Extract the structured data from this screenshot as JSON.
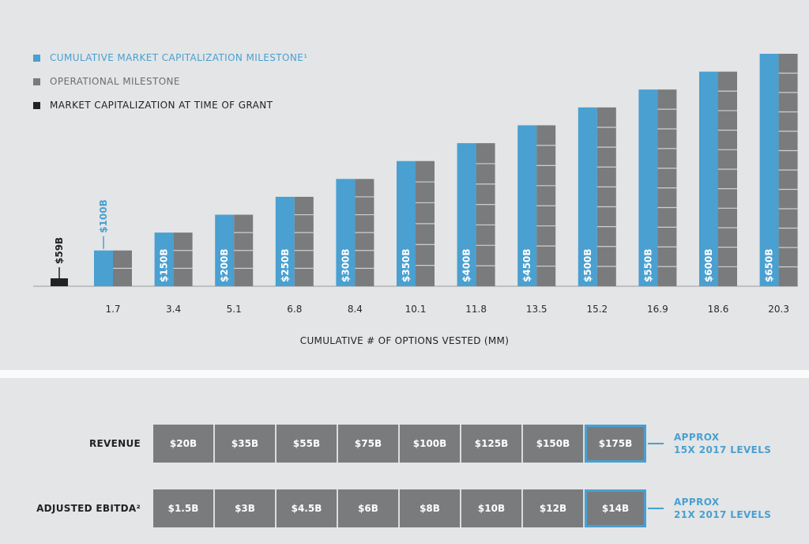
{
  "legend": [
    {
      "label": "CUMULATIVE MARKET CAPITALIZATION MILESTONE¹",
      "color": "#49a0d1",
      "text_color": "#49a0d1"
    },
    {
      "label": "OPERATIONAL MILESTONE",
      "color": "#7a7b7d",
      "text_color": "#6c6d6f"
    },
    {
      "label": "MARKET CAPITALIZATION AT TIME OF GRANT",
      "color": "#222222",
      "text_color": "#222222"
    }
  ],
  "chart_data": {
    "type": "bar",
    "title": "",
    "xlabel": "CUMULATIVE # OF OPTIONS VESTED (MM)",
    "ylabel": "",
    "grant": {
      "label": "$59B",
      "value": 59
    },
    "first_label": "$100B",
    "categories": [
      "1.7",
      "3.4",
      "5.1",
      "6.8",
      "8.4",
      "10.1",
      "11.8",
      "13.5",
      "15.2",
      "16.9",
      "18.6",
      "20.3"
    ],
    "series": [
      {
        "name": "Cumulative Market Capitalization Milestone",
        "values": [
          100,
          150,
          200,
          250,
          300,
          350,
          400,
          450,
          500,
          550,
          600,
          650
        ],
        "labels": [
          "$100B",
          "$150B",
          "$200B",
          "$250B",
          "$300B",
          "$350B",
          "$400B",
          "$450B",
          "$500B",
          "$550B",
          "$600B",
          "$650B"
        ]
      },
      {
        "name": "Operational Milestone",
        "values": [
          1,
          2,
          3,
          4,
          5,
          6,
          7,
          8,
          9,
          10,
          11,
          12
        ]
      }
    ],
    "ylim": [
      0,
      650
    ]
  },
  "table": {
    "rows": [
      {
        "label": "REVENUE",
        "values": [
          "$20B",
          "$35B",
          "$55B",
          "$75B",
          "$100B",
          "$125B",
          "$150B",
          "$175B"
        ],
        "note_line1": "APPROX",
        "note_line2": "15X 2017 LEVELS"
      },
      {
        "label": "ADJUSTED EBITDA²",
        "values": [
          "$1.5B",
          "$3B",
          "$4.5B",
          "$6B",
          "$8B",
          "$10B",
          "$12B",
          "$14B"
        ],
        "note_line1": "APPROX",
        "note_line2": "21X 2017 LEVELS"
      }
    ]
  },
  "colors": {
    "blue": "#49a0d1",
    "gray": "#7a7b7d",
    "black": "#222222",
    "axis": "#9a9b9d"
  }
}
